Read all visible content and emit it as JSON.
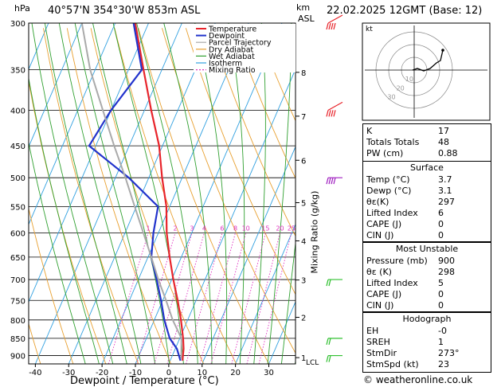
{
  "header": {
    "location": "40°57'N  354°30'W  853m  ASL",
    "datetime": "22.02.2025  12GMT  (Base: 12)",
    "hpa_label": "hPa",
    "km_label": "km",
    "asl_label": "ASL"
  },
  "chart_data": {
    "type": "skew-t",
    "title": "",
    "xlabel": "Dewpoint / Temperature (°C)",
    "ylabel_right": "Mixing Ratio (g/kg)",
    "pressure_levels": [
      300,
      350,
      400,
      450,
      500,
      550,
      600,
      650,
      700,
      750,
      800,
      850,
      900
    ],
    "x_ticks": [
      -40,
      -30,
      -20,
      -10,
      0,
      10,
      20,
      30
    ],
    "xlim": [
      -42,
      38
    ],
    "ylim_hpa": [
      300,
      925
    ],
    "km_ticks": [
      {
        "label": "8",
        "p": 353
      },
      {
        "label": "7",
        "p": 408
      },
      {
        "label": "6",
        "p": 472
      },
      {
        "label": "5",
        "p": 543
      },
      {
        "label": "4",
        "p": 616
      },
      {
        "label": "3",
        "p": 701
      },
      {
        "label": "2",
        "p": 793
      },
      {
        "label": "1",
        "p": 906
      }
    ],
    "lcl_label": "LCL",
    "lcl_p": 910,
    "mixing_ratio_labels": [
      "1",
      "2",
      "3",
      "4",
      "6",
      "8",
      "10",
      "15",
      "20",
      "25"
    ],
    "mixing_ratio_values": [
      1,
      2,
      3,
      4,
      6,
      8,
      10,
      15,
      20,
      25
    ],
    "legend": [
      "Temperature",
      "Dewpoint",
      "Parcel Trajectory",
      "Dry Adiabat",
      "Wet Adiabat",
      "Isotherm",
      "Mixing Ratio"
    ],
    "legend_position": "top-right",
    "series": [
      {
        "name": "Temperature",
        "color": "#e8242b",
        "points": [
          [
            3.7,
            915
          ],
          [
            2.5,
            880
          ],
          [
            1.0,
            850
          ],
          [
            -2.0,
            800
          ],
          [
            -5.5,
            750
          ],
          [
            -9.5,
            700
          ],
          [
            -13.5,
            650
          ],
          [
            -17.5,
            600
          ],
          [
            -21.0,
            550
          ],
          [
            -26.0,
            500
          ],
          [
            -31.0,
            450
          ],
          [
            -38.0,
            400
          ],
          [
            -45.5,
            350
          ],
          [
            -54.0,
            300
          ]
        ]
      },
      {
        "name": "Dewpoint",
        "color": "#2233cc",
        "points": [
          [
            3.1,
            915
          ],
          [
            0.5,
            880
          ],
          [
            -3.0,
            850
          ],
          [
            -7.0,
            800
          ],
          [
            -10.5,
            750
          ],
          [
            -14.5,
            700
          ],
          [
            -19.0,
            650
          ],
          [
            -21.5,
            600
          ],
          [
            -23.5,
            550
          ],
          [
            -36.0,
            500
          ],
          [
            -52.0,
            450
          ],
          [
            -50.0,
            400
          ],
          [
            -46.0,
            350
          ],
          [
            -54.5,
            300
          ]
        ]
      },
      {
        "name": "Parcel Trajectory",
        "color": "#aaaaaa",
        "points": [
          [
            3.1,
            910
          ],
          [
            0.5,
            850
          ],
          [
            -4.5,
            800
          ],
          [
            -9.0,
            750
          ],
          [
            -14.0,
            700
          ],
          [
            -19.0,
            650
          ],
          [
            -24.5,
            600
          ],
          [
            -30.5,
            550
          ],
          [
            -37.0,
            500
          ],
          [
            -44.5,
            450
          ],
          [
            -52.5,
            400
          ],
          [
            -61.5,
            350
          ],
          [
            -70.0,
            300
          ]
        ]
      }
    ],
    "wind_barbs_p": [
      300,
      400,
      500,
      700,
      850,
      900
    ]
  },
  "hodograph": {
    "unit_label": "kt",
    "ring_labels": [
      "10",
      "20",
      "30"
    ]
  },
  "indices": {
    "rows": [
      {
        "label": "K",
        "value": "17"
      },
      {
        "label": "Totals Totals",
        "value": "48"
      },
      {
        "label": "PW (cm)",
        "value": "0.88"
      }
    ]
  },
  "surface": {
    "title": "Surface",
    "rows": [
      {
        "label": "Temp (°C)",
        "value": "3.7"
      },
      {
        "label": "Dewp (°C)",
        "value": "3.1"
      },
      {
        "label": "θε(K)",
        "value": "297"
      },
      {
        "label": "Lifted Index",
        "value": "6"
      },
      {
        "label": "CAPE (J)",
        "value": "0"
      },
      {
        "label": "CIN (J)",
        "value": "0"
      }
    ]
  },
  "most_unstable": {
    "title": "Most Unstable",
    "rows": [
      {
        "label": "Pressure (mb)",
        "value": "900"
      },
      {
        "label": "θε (K)",
        "value": "298"
      },
      {
        "label": "Lifted Index",
        "value": "5"
      },
      {
        "label": "CAPE (J)",
        "value": "0"
      },
      {
        "label": "CIN (J)",
        "value": "0"
      }
    ]
  },
  "hodograph_table": {
    "title": "Hodograph",
    "rows": [
      {
        "label": "EH",
        "value": "-0"
      },
      {
        "label": "SREH",
        "value": "1"
      },
      {
        "label": "StmDir",
        "value": "273°"
      },
      {
        "label": "StmSpd (kt)",
        "value": "23"
      }
    ]
  },
  "footer": {
    "copyright": "© weatheronline.co.uk"
  },
  "colors": {
    "temperature": "#e8242b",
    "dewpoint": "#2233cc",
    "parcel": "#aaaaaa",
    "dry_adiabat": "#e8a030",
    "wet_adiabat": "#30a030",
    "isotherm": "#30a0e0",
    "mixing_ratio": "#e030c0",
    "barb": "#30c030",
    "barb_high": "#e8242b",
    "barb_mid": "#a020c0"
  }
}
